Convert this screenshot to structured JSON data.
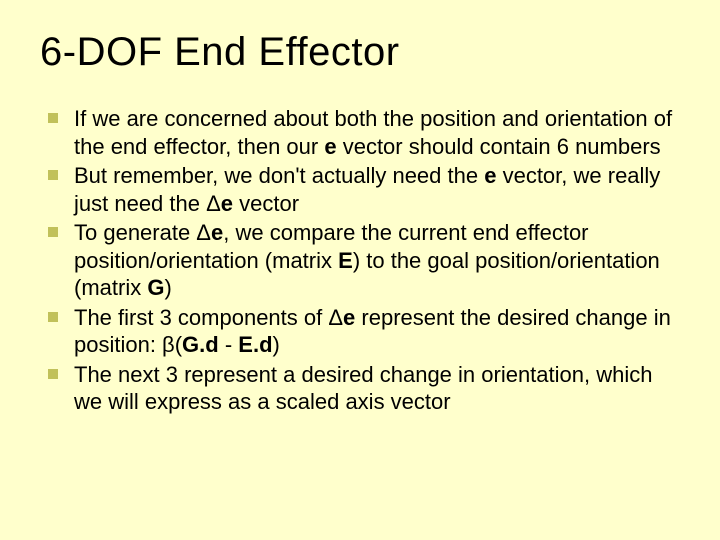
{
  "slide": {
    "background_color": "#ffffcc",
    "bullet_color": "#c1c15a",
    "text_color": "#000000",
    "title": "6-DOF End Effector",
    "title_fontsize": 40,
    "body_fontsize": 22,
    "bullets": [
      {
        "html": "If we are concerned about both the position and orientation of the end effector, then our <span class=\"bold\">e</span> vector should contain 6 numbers"
      },
      {
        "html": "But remember, we don't actually need the <span class=\"bold\">e</span> vector, we really just need the Δ<span class=\"bold\">e</span> vector"
      },
      {
        "html": "To generate Δ<span class=\"bold\">e</span>, we compare the current end effector position/orientation (matrix <span class=\"bold\">E</span>) to the goal position/orientation (matrix <span class=\"bold\">G</span>)"
      },
      {
        "html": "The first 3 components of Δ<span class=\"bold\">e</span> represent the desired change in position: β(<span class=\"bold\">G.d</span> - <span class=\"bold\">E.d</span>)"
      },
      {
        "html": "The next 3 represent a desired change in orientation, which we will express as a scaled axis vector"
      }
    ]
  }
}
